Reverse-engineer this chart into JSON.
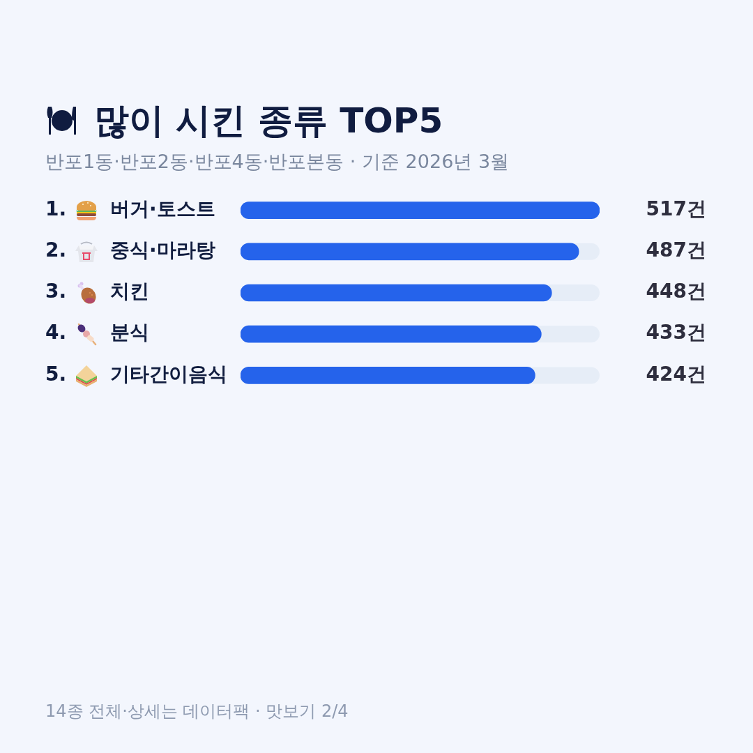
{
  "chart_data": {
    "type": "bar",
    "orientation": "horizontal",
    "title": "많이 시킨 종류 TOP5",
    "subtitle": "반포1동·반포2동·반포4동·반포본동 · 기준 2026년 3월",
    "categories": [
      "1. 버거·토스트",
      "2. 중식·마라탕",
      "3. 치킨",
      "4. 분식",
      "5. 기타간이음식"
    ],
    "values": [
      517,
      487,
      448,
      433,
      424
    ],
    "value_labels": [
      "517건",
      "487건",
      "448건",
      "433건",
      "424건"
    ],
    "color": "#2563eb",
    "xlim": [
      0,
      517
    ],
    "tick_labels": "y",
    "annotations": [
      "14종 전체·상세는 데이터팩 · 맛보기 2/4"
    ]
  }
}
